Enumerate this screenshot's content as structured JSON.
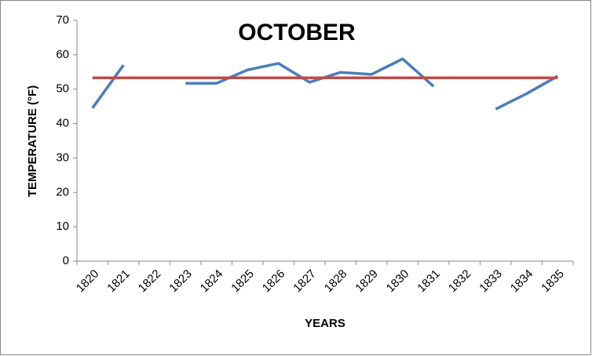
{
  "chart_data": {
    "type": "line",
    "title": "OCTOBER",
    "x_label": "YEARS",
    "y_label": "TEMPERATURE (°F)",
    "categories": [
      "1820",
      "1821",
      "1822",
      "1823",
      "1824",
      "1825",
      "1826",
      "1827",
      "1828",
      "1829",
      "1830",
      "1831",
      "1832",
      "1833",
      "1834",
      "1835"
    ],
    "series": [
      {
        "color": "#4a7ebb",
        "values": [
          44.5,
          57.0,
          null,
          51.7,
          51.7,
          55.6,
          57.5,
          52.0,
          54.9,
          54.3,
          58.8,
          50.8,
          null,
          44.2,
          48.7,
          53.8
        ]
      },
      {
        "color": "#be4b48",
        "values": [
          53.3,
          53.3,
          53.3,
          53.3,
          53.3,
          53.3,
          53.3,
          53.3,
          53.3,
          53.3,
          53.3,
          53.3,
          53.3,
          53.3,
          53.3,
          53.3
        ]
      }
    ],
    "ylim": [
      0,
      70
    ],
    "yticks": [
      0,
      10,
      20,
      30,
      40,
      50,
      60,
      70
    ],
    "grid": false
  }
}
